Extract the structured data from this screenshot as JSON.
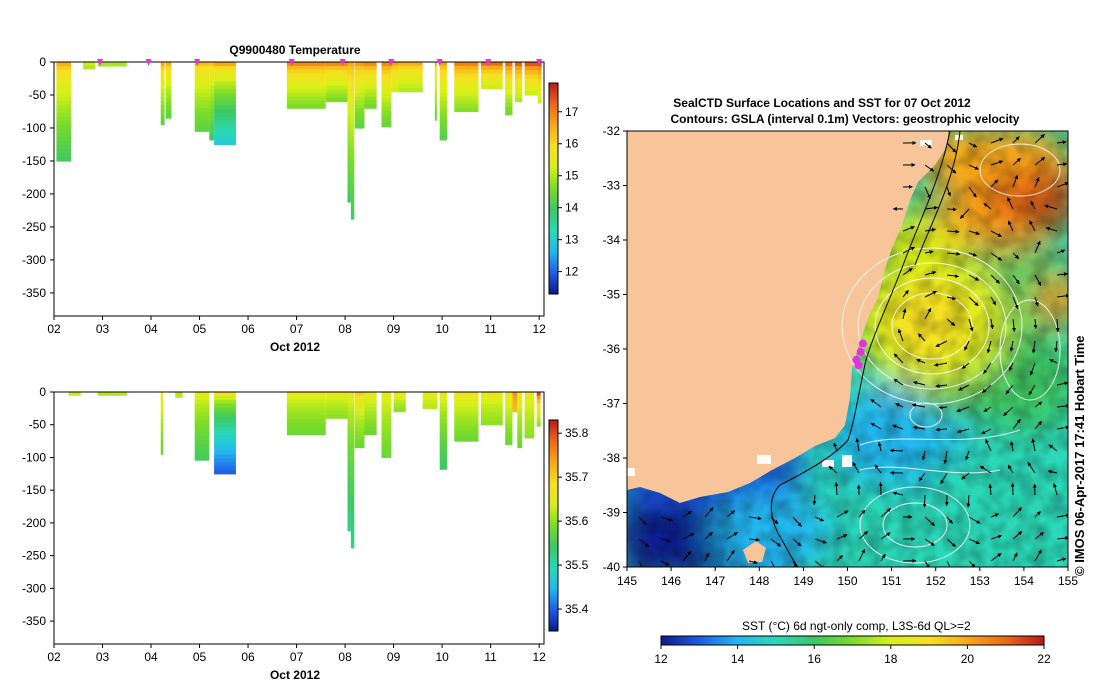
{
  "chart_data": [
    {
      "type": "heatmap",
      "title": "Q9900480  Temperature",
      "xlabel": "Oct 2012",
      "ylabel": "",
      "x_ticks": [
        "02",
        "03",
        "04",
        "05",
        "06",
        "07",
        "08",
        "09",
        "10",
        "11",
        "12"
      ],
      "x_range": [
        2,
        12.1
      ],
      "y_ticks": [
        0,
        -50,
        -100,
        -150,
        -200,
        -250,
        -300,
        -350
      ],
      "ylim": [
        -385,
        0
      ],
      "colorbar": {
        "ticks": [
          12,
          13,
          14,
          15,
          16,
          17
        ],
        "range": [
          11.3,
          17.9
        ]
      },
      "markers_days": [
        2.95,
        3.95,
        4.95,
        6.9,
        7.95,
        8.95,
        9.95,
        10.95,
        12.0
      ],
      "profiles": [
        {
          "day": 2.05,
          "width": 0.3,
          "depth": 150,
          "top": 16.5,
          "bottom": 14.0
        },
        {
          "day": 2.6,
          "width": 0.25,
          "depth": 10,
          "top": 15.2,
          "bottom": 15.0
        },
        {
          "day": 2.9,
          "width": 0.6,
          "depth": 6,
          "top": 15.0,
          "bottom": 14.9
        },
        {
          "day": 4.2,
          "width": 0.08,
          "depth": 95,
          "top": 16.6,
          "bottom": 14.3
        },
        {
          "day": 4.3,
          "width": 0.12,
          "depth": 85,
          "top": 16.5,
          "bottom": 14.3
        },
        {
          "day": 4.9,
          "width": 0.3,
          "depth": 105,
          "top": 16.3,
          "bottom": 14.3
        },
        {
          "day": 5.2,
          "width": 0.1,
          "depth": 118,
          "top": 16.3,
          "bottom": 14.0
        },
        {
          "day": 5.3,
          "width": 0.45,
          "depth": 125,
          "top": 16.6,
          "bottom": 13.0
        },
        {
          "day": 6.8,
          "width": 0.8,
          "depth": 70,
          "top": 16.9,
          "bottom": 14.6
        },
        {
          "day": 7.6,
          "width": 0.45,
          "depth": 60,
          "top": 16.9,
          "bottom": 14.6
        },
        {
          "day": 8.05,
          "width": 0.07,
          "depth": 212,
          "top": 16.6,
          "bottom": 14.0
        },
        {
          "day": 8.12,
          "width": 0.07,
          "depth": 238,
          "top": 16.6,
          "bottom": 14.0
        },
        {
          "day": 8.2,
          "width": 0.2,
          "depth": 100,
          "top": 16.7,
          "bottom": 14.3
        },
        {
          "day": 8.4,
          "width": 0.25,
          "depth": 70,
          "top": 16.9,
          "bottom": 14.5
        },
        {
          "day": 8.75,
          "width": 0.2,
          "depth": 98,
          "top": 16.9,
          "bottom": 14.4
        },
        {
          "day": 8.95,
          "width": 0.15,
          "depth": 45,
          "top": 16.6,
          "bottom": 15.2
        },
        {
          "day": 9.1,
          "width": 0.5,
          "depth": 45,
          "top": 16.5,
          "bottom": 15.0
        },
        {
          "day": 9.85,
          "width": 0.04,
          "depth": 88,
          "top": 16.4,
          "bottom": 14.4
        },
        {
          "day": 9.95,
          "width": 0.15,
          "depth": 118,
          "top": 16.6,
          "bottom": 14.2
        },
        {
          "day": 10.25,
          "width": 0.5,
          "depth": 75,
          "top": 17.0,
          "bottom": 14.7
        },
        {
          "day": 10.8,
          "width": 0.45,
          "depth": 40,
          "top": 17.2,
          "bottom": 15.2
        },
        {
          "day": 11.3,
          "width": 0.15,
          "depth": 80,
          "top": 17.2,
          "bottom": 14.5
        },
        {
          "day": 11.5,
          "width": 0.15,
          "depth": 60,
          "top": 17.3,
          "bottom": 15.0
        },
        {
          "day": 11.7,
          "width": 0.3,
          "depth": 50,
          "top": 17.4,
          "bottom": 15.2
        },
        {
          "day": 11.97,
          "width": 0.08,
          "depth": 62,
          "top": 17.5,
          "bottom": 15.2
        }
      ]
    },
    {
      "type": "heatmap",
      "title": "",
      "xlabel": "Oct 2012",
      "ylabel": "",
      "x_ticks": [
        "02",
        "03",
        "04",
        "05",
        "06",
        "07",
        "08",
        "09",
        "10",
        "11",
        "12"
      ],
      "x_range": [
        2,
        12.1
      ],
      "y_ticks": [
        0,
        -50,
        -100,
        -150,
        -200,
        -250,
        -300,
        -350
      ],
      "ylim": [
        -385,
        0
      ],
      "colorbar": {
        "ticks": [
          35.4,
          35.5,
          35.6,
          35.7,
          35.8
        ],
        "range": [
          35.35,
          35.83
        ]
      },
      "profiles": [
        {
          "day": 2.3,
          "width": 0.25,
          "depth": 5,
          "top": 35.63,
          "bottom": 35.63
        },
        {
          "day": 2.9,
          "width": 0.6,
          "depth": 5,
          "top": 35.62,
          "bottom": 35.62
        },
        {
          "day": 4.2,
          "width": 0.05,
          "depth": 95,
          "top": 35.68,
          "bottom": 35.58
        },
        {
          "day": 4.5,
          "width": 0.15,
          "depth": 8,
          "top": 35.62,
          "bottom": 35.62
        },
        {
          "day": 4.9,
          "width": 0.3,
          "depth": 104,
          "top": 35.66,
          "bottom": 35.55
        },
        {
          "day": 5.3,
          "width": 0.45,
          "depth": 125,
          "top": 35.68,
          "bottom": 35.4
        },
        {
          "day": 6.8,
          "width": 0.8,
          "depth": 65,
          "top": 35.66,
          "bottom": 35.58
        },
        {
          "day": 7.6,
          "width": 0.45,
          "depth": 40,
          "top": 35.66,
          "bottom": 35.6
        },
        {
          "day": 8.05,
          "width": 0.07,
          "depth": 212,
          "top": 35.66,
          "bottom": 35.52
        },
        {
          "day": 8.12,
          "width": 0.07,
          "depth": 238,
          "top": 35.66,
          "bottom": 35.52
        },
        {
          "day": 8.2,
          "width": 0.2,
          "depth": 85,
          "top": 35.7,
          "bottom": 35.58
        },
        {
          "day": 8.4,
          "width": 0.25,
          "depth": 65,
          "top": 35.67,
          "bottom": 35.58
        },
        {
          "day": 8.75,
          "width": 0.2,
          "depth": 100,
          "top": 35.66,
          "bottom": 35.58
        },
        {
          "day": 9.0,
          "width": 0.25,
          "depth": 30,
          "top": 35.67,
          "bottom": 35.6
        },
        {
          "day": 9.6,
          "width": 0.3,
          "depth": 25,
          "top": 35.66,
          "bottom": 35.62
        },
        {
          "day": 9.95,
          "width": 0.15,
          "depth": 118,
          "top": 35.67,
          "bottom": 35.54
        },
        {
          "day": 10.25,
          "width": 0.5,
          "depth": 75,
          "top": 35.68,
          "bottom": 35.58
        },
        {
          "day": 10.8,
          "width": 0.45,
          "depth": 50,
          "top": 35.67,
          "bottom": 35.6
        },
        {
          "day": 11.3,
          "width": 0.15,
          "depth": 80,
          "top": 35.68,
          "bottom": 35.58
        },
        {
          "day": 11.45,
          "width": 0.1,
          "depth": 30,
          "top": 35.75,
          "bottom": 35.72
        },
        {
          "day": 11.55,
          "width": 0.1,
          "depth": 85,
          "top": 35.68,
          "bottom": 35.58
        },
        {
          "day": 11.7,
          "width": 0.2,
          "depth": 70,
          "top": 35.67,
          "bottom": 35.6
        },
        {
          "day": 11.95,
          "width": 0.08,
          "depth": 52,
          "top": 35.8,
          "bottom": 35.6
        }
      ]
    },
    {
      "type": "heatmap",
      "title": "SealCTD Surface Locations and SST for 07 Oct 2012",
      "subtitle": "Contours: GSLA (interval 0.1m) Vectors: geostrophic velocity",
      "x_ticks": [
        145,
        146,
        147,
        148,
        149,
        150,
        151,
        152,
        153,
        154,
        155
      ],
      "y_ticks": [
        -32,
        -33,
        -34,
        -35,
        -36,
        -37,
        -38,
        -39,
        -40
      ],
      "xlim": [
        145,
        155
      ],
      "ylim": [
        -40,
        -32
      ],
      "colorbar_label": "SST (°C) 6d ngt-only comp, L3S-6d QL>=2",
      "colorbar_ticks": [
        12,
        14,
        16,
        18,
        20,
        22
      ],
      "colorbar_range": [
        12,
        22
      ],
      "eddy_center": [
        152.1,
        -35.6
      ],
      "seal_locations": [
        [
          150.2,
          -36.2
        ],
        [
          150.3,
          -36.05
        ],
        [
          150.25,
          -36.3
        ],
        [
          150.35,
          -35.9
        ]
      ],
      "credit": "© IMOS 06-Apr-2017 17:41 Hobart Time"
    }
  ],
  "colors": {
    "land": "#f8c59a",
    "marker": "#e830e0",
    "temp_scale": [
      "#0a1a8c",
      "#1e5ce8",
      "#22b8f0",
      "#2ad8b8",
      "#3cc864",
      "#7adc28",
      "#d8f018",
      "#f8e020",
      "#f8a818",
      "#ec6818",
      "#b81818"
    ],
    "sst_scale": [
      "#0a1a8c",
      "#1e5ce8",
      "#22b8f0",
      "#2ad8b8",
      "#3cc864",
      "#7adc28",
      "#d8f018",
      "#f8e020",
      "#f8a818",
      "#ec6818",
      "#b81818"
    ]
  }
}
